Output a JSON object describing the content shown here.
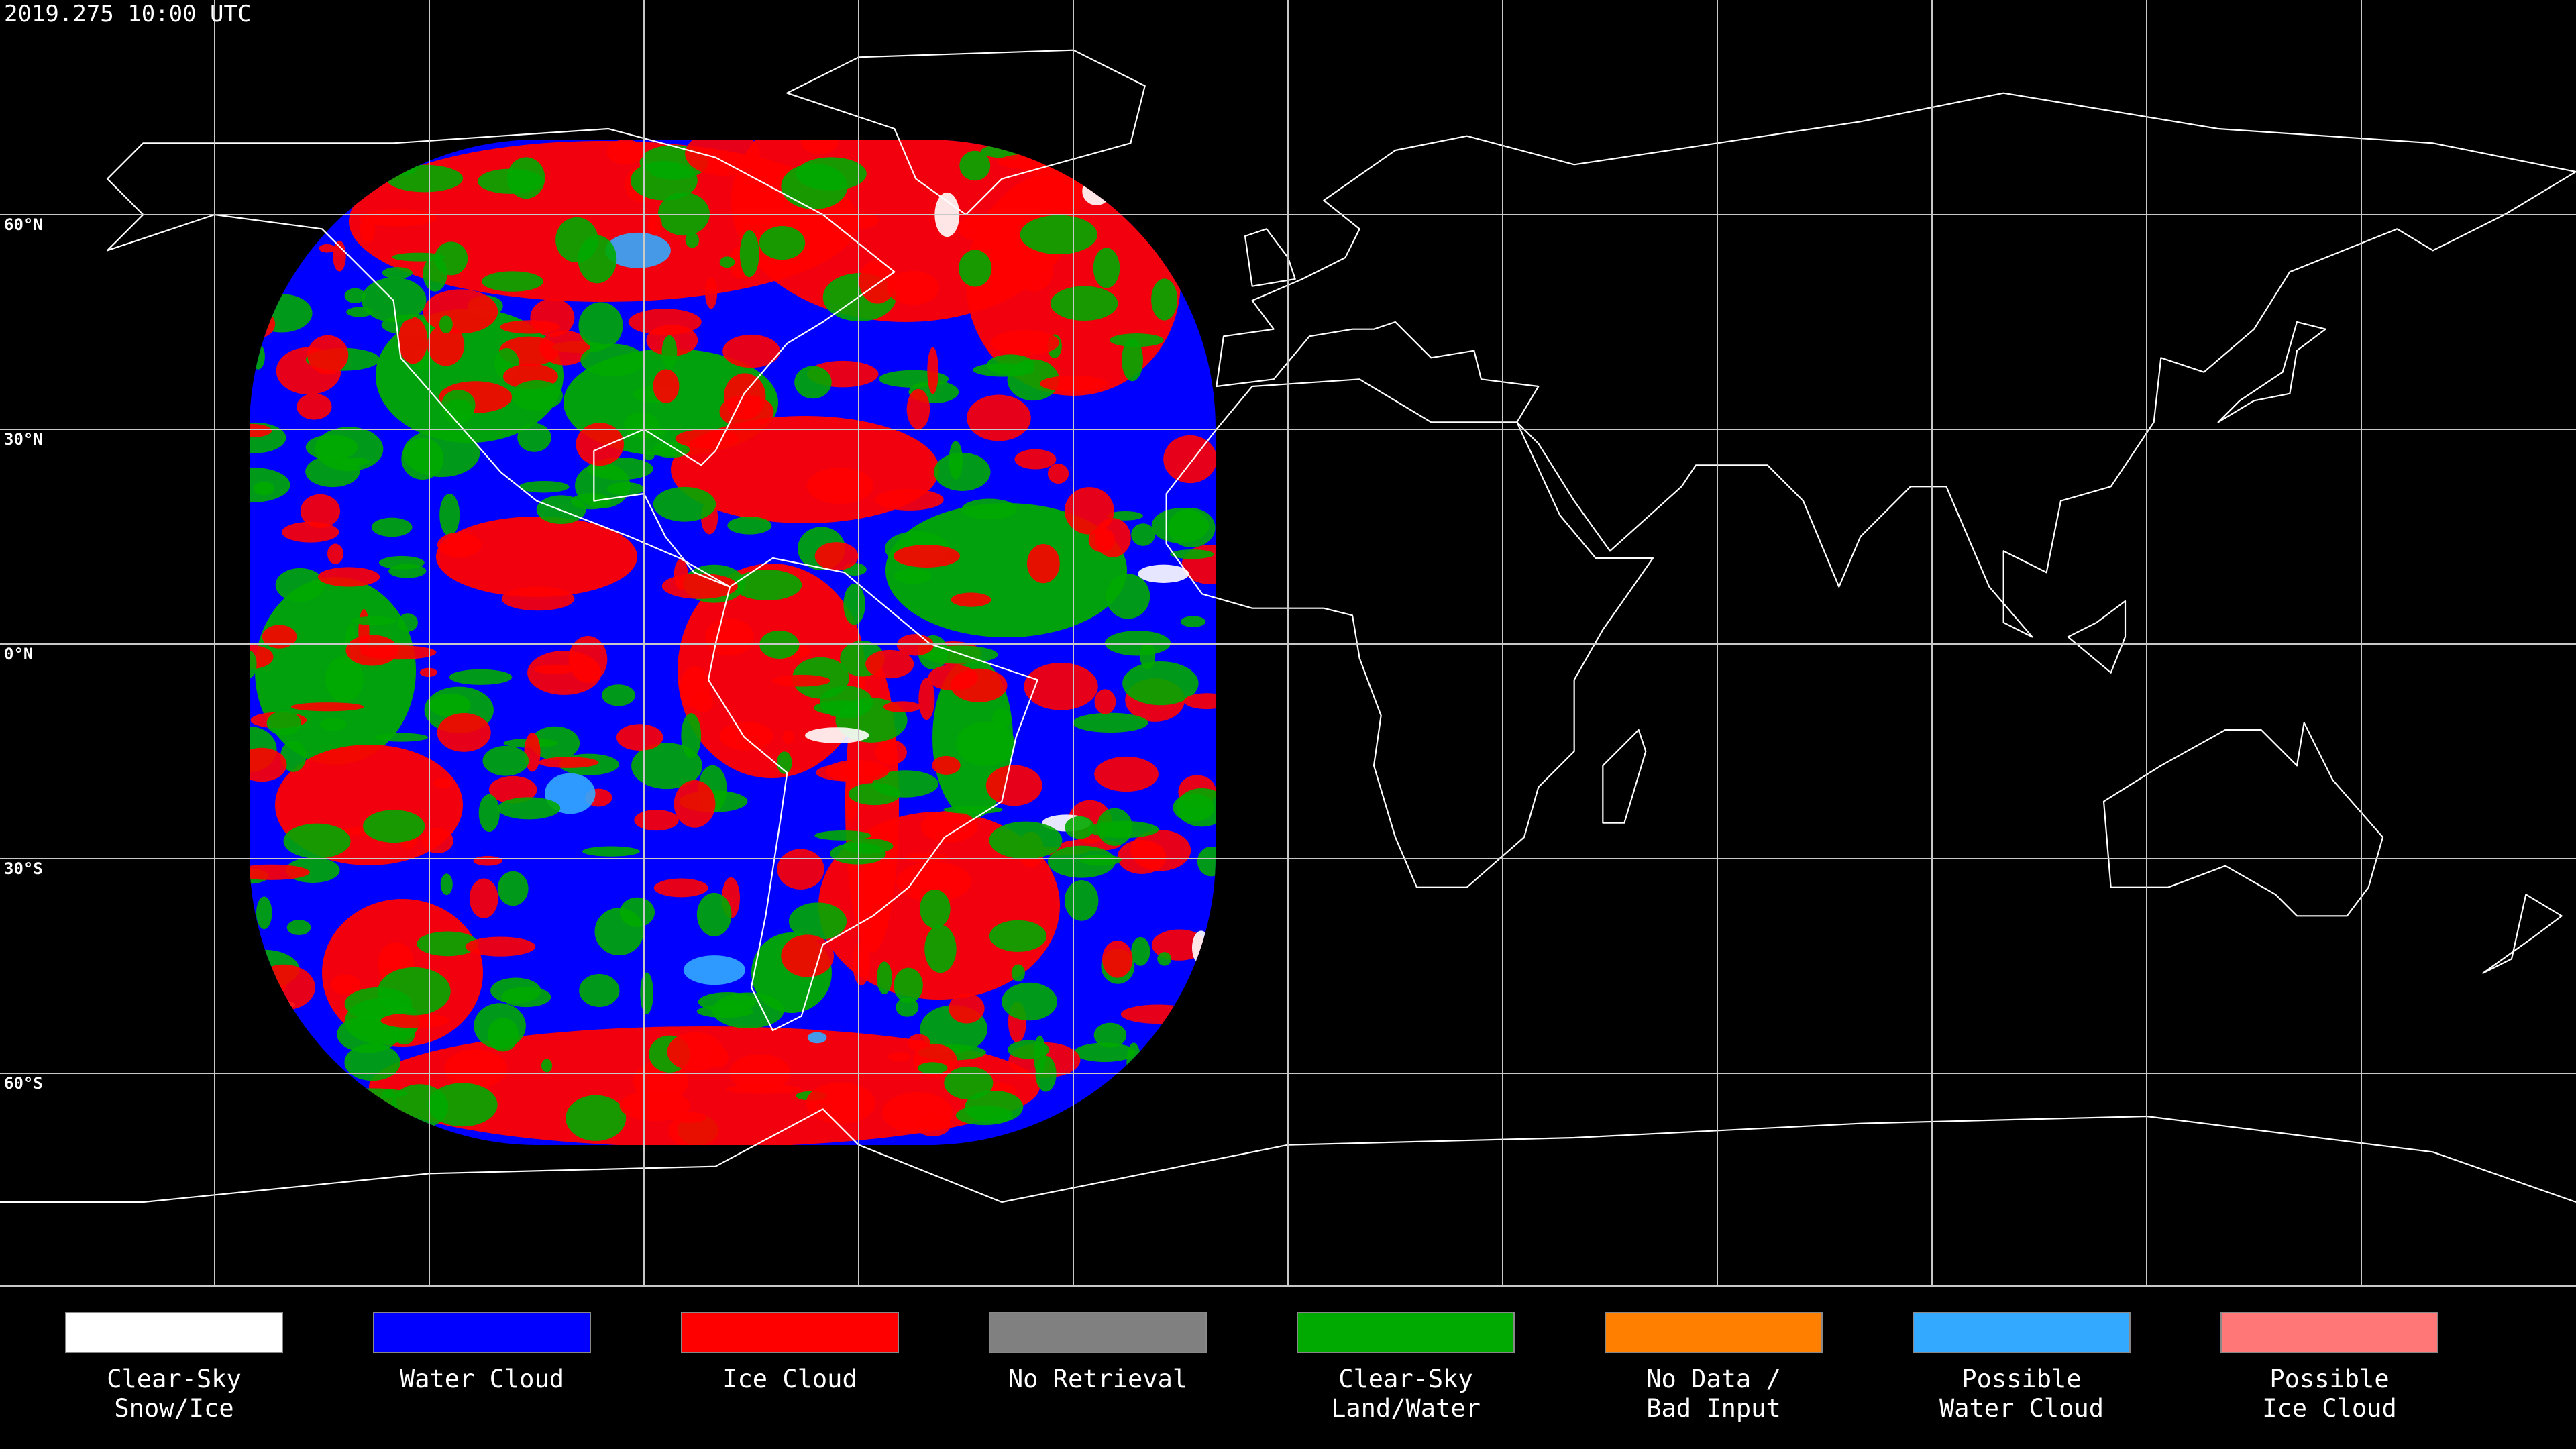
{
  "header": {
    "timestamp": "2019.275 10:00 UTC"
  },
  "map": {
    "latitude_labels": [
      "60°N",
      "30°N",
      "0°N",
      "30°S",
      "60°S"
    ]
  },
  "legend": {
    "items": [
      {
        "label": [
          "Clear-Sky",
          "Snow/Ice"
        ],
        "color": "#ffffff"
      },
      {
        "label": [
          "Water Cloud"
        ],
        "color": "#0000ff"
      },
      {
        "label": [
          "Ice Cloud"
        ],
        "color": "#ff0000"
      },
      {
        "label": [
          "No Retrieval"
        ],
        "color": "#808080"
      },
      {
        "label": [
          "Clear-Sky",
          "Land/Water"
        ],
        "color": "#00aa00"
      },
      {
        "label": [
          "No Data /",
          "Bad Input"
        ],
        "color": "#ff8000"
      },
      {
        "label": [
          "Possible",
          "Water Cloud"
        ],
        "color": "#33aaff"
      },
      {
        "label": [
          "Possible",
          "Ice Cloud"
        ],
        "color": "#ff7777"
      }
    ]
  }
}
